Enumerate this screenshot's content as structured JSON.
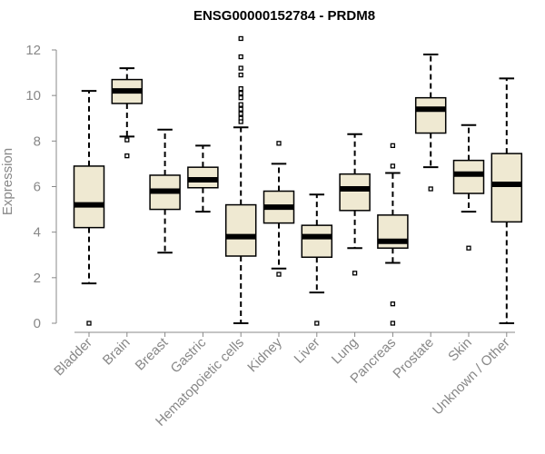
{
  "colors": {
    "box_fill": "#efe9d2",
    "box_stroke": "#000000",
    "axis": "#888888",
    "median": "#000000"
  },
  "chart_data": {
    "type": "boxplot",
    "title": "ENSG00000152784 - PRDM8",
    "xlabel": "",
    "ylabel": "Expression",
    "ylim": [
      0,
      12
    ],
    "yticks": [
      0,
      2,
      4,
      6,
      8,
      10,
      12
    ],
    "grid": false,
    "categories": [
      "Bladder",
      "Brain",
      "Breast",
      "Gastric",
      "Hematopoietic cells",
      "Kidney",
      "Liver",
      "Lung",
      "Pancreas",
      "Prostate",
      "Skin",
      "Unknown / Other"
    ],
    "boxes": [
      {
        "category": "Bladder",
        "whisker_low": 1.75,
        "q1": 4.2,
        "median": 5.2,
        "q3": 6.9,
        "whisker_high": 10.2,
        "outliers": [
          0.0
        ]
      },
      {
        "category": "Brain",
        "whisker_low": 8.2,
        "q1": 9.65,
        "median": 10.2,
        "q3": 10.7,
        "whisker_high": 11.2,
        "outliers": [
          8.05,
          7.35
        ]
      },
      {
        "category": "Breast",
        "whisker_low": 3.1,
        "q1": 5.0,
        "median": 5.8,
        "q3": 6.5,
        "whisker_high": 8.5,
        "outliers": []
      },
      {
        "category": "Gastric",
        "whisker_low": 4.9,
        "q1": 5.95,
        "median": 6.3,
        "q3": 6.85,
        "whisker_high": 7.8,
        "outliers": []
      },
      {
        "category": "Hematopoietic cells",
        "whisker_low": 0.0,
        "q1": 2.95,
        "median": 3.8,
        "q3": 5.2,
        "whisker_high": 8.6,
        "outliers": [
          12.5,
          11.7,
          11.2,
          10.9,
          10.3,
          10.1,
          9.9,
          9.6,
          9.4,
          9.2,
          9.0,
          8.85
        ]
      },
      {
        "category": "Kidney",
        "whisker_low": 2.4,
        "q1": 4.4,
        "median": 5.1,
        "q3": 5.8,
        "whisker_high": 7.0,
        "outliers": [
          7.9,
          2.15
        ]
      },
      {
        "category": "Liver",
        "whisker_low": 1.35,
        "q1": 2.9,
        "median": 3.8,
        "q3": 4.3,
        "whisker_high": 5.65,
        "outliers": [
          0.0
        ]
      },
      {
        "category": "Lung",
        "whisker_low": 3.3,
        "q1": 4.95,
        "median": 5.9,
        "q3": 6.55,
        "whisker_high": 8.3,
        "outliers": [
          2.2
        ]
      },
      {
        "category": "Pancreas",
        "whisker_low": 2.65,
        "q1": 3.3,
        "median": 3.6,
        "q3": 4.75,
        "whisker_high": 6.6,
        "outliers": [
          7.8,
          6.9,
          0.85,
          0.0
        ]
      },
      {
        "category": "Prostate",
        "whisker_low": 6.85,
        "q1": 8.35,
        "median": 9.4,
        "q3": 9.9,
        "whisker_high": 11.8,
        "outliers": [
          5.9
        ]
      },
      {
        "category": "Skin",
        "whisker_low": 4.9,
        "q1": 5.7,
        "median": 6.55,
        "q3": 7.15,
        "whisker_high": 8.7,
        "outliers": [
          3.3
        ]
      },
      {
        "category": "Unknown / Other",
        "whisker_low": 0.0,
        "q1": 4.45,
        "median": 6.1,
        "q3": 7.45,
        "whisker_high": 10.75,
        "outliers": []
      }
    ]
  }
}
